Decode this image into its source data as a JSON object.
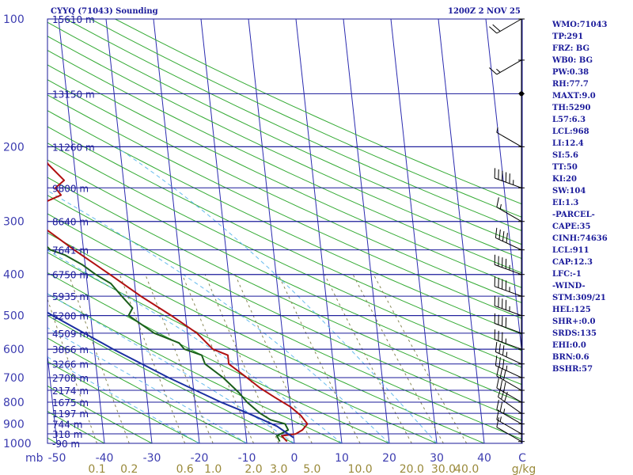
{
  "header": {
    "title": "CYYQ (71043) Sounding",
    "datetime": "1200Z  2 NOV 25"
  },
  "indices": [
    "WMO:71043",
    "TP:291",
    "FRZ: BG",
    "WB0: BG",
    "PW:0.38",
    "RH:77.7",
    "MAXT:9.0",
    "TH:5290",
    "L57:6.3",
    "LCL:968",
    "LI:12.4",
    "SI:5.6",
    "TT:50",
    "KI:20",
    "SW:104",
    "EI:1.3",
    "-PARCEL-",
    "CAPE:35",
    "CINH:74636",
    "LCL:911",
    "CAP:12.3",
    "LFC:-1",
    "-WIND-",
    "STM:309/21",
    "HEL:125",
    "SHR+:0.0",
    "SRDS:135",
    "EHI:0.0",
    "BRN:0.6",
    "BSHR:57"
  ],
  "colors": {
    "isobar": "#1a1a9a",
    "isotherm": "#2b2bb0",
    "dry_adiabat": "#33aa33",
    "moist_adiabat": "#66bbee",
    "mixing_ratio": "#888855",
    "temperature": "#b01010",
    "dewpoint": "#1a5e1a",
    "parcel": "#1a2fa0",
    "wind": "#000000",
    "indices_text": "#1a1a9a"
  },
  "chart_data": {
    "type": "line",
    "chart_kind": "skew-T log-P sounding",
    "pressure_axis": {
      "unit": "mb",
      "scale": "log",
      "range": [
        1000,
        100
      ],
      "tick_labels": [
        "100",
        "200",
        "300",
        "400",
        "500",
        "600",
        "700",
        "800",
        "900",
        "1000"
      ],
      "unit_label": "mb"
    },
    "temperature_axis": {
      "unit": "C",
      "range": [
        -50,
        50
      ],
      "tick_labels": [
        "-50",
        "-40",
        "-30",
        "-20",
        "-10",
        "0",
        "10",
        "20",
        "30",
        "40"
      ],
      "unit_label": "C"
    },
    "heights": [
      {
        "p": 100,
        "label": "15610 m"
      },
      {
        "p": 150,
        "label": "13150 m"
      },
      {
        "p": 200,
        "label": "11260 m"
      },
      {
        "p": 250,
        "label": "9800 m"
      },
      {
        "p": 300,
        "label": "8640 m"
      },
      {
        "p": 350,
        "label": "7641 m"
      },
      {
        "p": 400,
        "label": "6750 m"
      },
      {
        "p": 450,
        "label": "5935 m"
      },
      {
        "p": 500,
        "label": "5200 m"
      },
      {
        "p": 550,
        "label": "4509 m"
      },
      {
        "p": 600,
        "label": "3866 m"
      },
      {
        "p": 650,
        "label": "3266 m"
      },
      {
        "p": 700,
        "label": "2708 m"
      },
      {
        "p": 750,
        "label": "2174 m"
      },
      {
        "p": 800,
        "label": "1675 m"
      },
      {
        "p": 850,
        "label": "1197 m"
      },
      {
        "p": 900,
        "label": "744 m"
      },
      {
        "p": 950,
        "label": "318 m"
      },
      {
        "p": 1000,
        "label": "-90 m"
      }
    ],
    "mixing_ratio_labels": {
      "unit": "g/kg",
      "values": [
        "0.1",
        "0.2",
        "0.6",
        "1.0",
        "2.0",
        "3.0",
        "5.0",
        "10.0",
        "20.0",
        "30.0",
        "40.0"
      ]
    },
    "series": [
      {
        "id": "temperature",
        "points": [
          {
            "p": 990,
            "t": -1.5
          },
          {
            "p": 960,
            "t": -2.5
          },
          {
            "p": 950,
            "t": 0.5
          },
          {
            "p": 930,
            "t": 2.0
          },
          {
            "p": 900,
            "t": 3.2
          },
          {
            "p": 860,
            "t": 2.0
          },
          {
            "p": 820,
            "t": 0.0
          },
          {
            "p": 780,
            "t": -3.0
          },
          {
            "p": 740,
            "t": -6.0
          },
          {
            "p": 700,
            "t": -8.5
          },
          {
            "p": 650,
            "t": -12.0
          },
          {
            "p": 620,
            "t": -12.0
          },
          {
            "p": 600,
            "t": -15.0
          },
          {
            "p": 550,
            "t": -18.0
          },
          {
            "p": 500,
            "t": -23.0
          },
          {
            "p": 450,
            "t": -29.0
          },
          {
            "p": 400,
            "t": -35.0
          },
          {
            "p": 350,
            "t": -42.0
          },
          {
            "p": 300,
            "t": -49.5
          },
          {
            "p": 290,
            "t": -51.0
          },
          {
            "p": 280,
            "t": -50.5
          },
          {
            "p": 270,
            "t": -47.0
          },
          {
            "p": 260,
            "t": -43.5
          },
          {
            "p": 250,
            "t": -44.5
          },
          {
            "p": 240,
            "t": -42.5
          },
          {
            "p": 220,
            "t": -45.5
          },
          {
            "p": 200,
            "t": -47.5
          },
          {
            "p": 180,
            "t": -49.5
          },
          {
            "p": 160,
            "t": -53.5
          },
          {
            "p": 150,
            "t": -55.0
          },
          {
            "p": 140,
            "t": -57.0
          },
          {
            "p": 130,
            "t": -58.5
          },
          {
            "p": 120,
            "t": -61.5
          },
          {
            "p": 110,
            "t": -63.0
          },
          {
            "p": 100,
            "t": -65.0
          }
        ]
      },
      {
        "id": "dewpoint",
        "points": [
          {
            "p": 990,
            "t": -3.0
          },
          {
            "p": 960,
            "t": -3.5
          },
          {
            "p": 930,
            "t": -1.0
          },
          {
            "p": 900,
            "t": -1.5
          },
          {
            "p": 880,
            "t": -4.5
          },
          {
            "p": 850,
            "t": -6.5
          },
          {
            "p": 800,
            "t": -9.0
          },
          {
            "p": 760,
            "t": -10.5
          },
          {
            "p": 700,
            "t": -13.5
          },
          {
            "p": 650,
            "t": -17.0
          },
          {
            "p": 620,
            "t": -17.5
          },
          {
            "p": 600,
            "t": -21.0
          },
          {
            "p": 580,
            "t": -22.0
          },
          {
            "p": 550,
            "t": -27.0
          },
          {
            "p": 500,
            "t": -32.0
          },
          {
            "p": 480,
            "t": -31.0
          },
          {
            "p": 450,
            "t": -33.0
          },
          {
            "p": 420,
            "t": -35.0
          },
          {
            "p": 400,
            "t": -38.0
          },
          {
            "p": 380,
            "t": -40.5
          },
          {
            "p": 360,
            "t": -44.0
          },
          {
            "p": 350,
            "t": -47.0
          },
          {
            "p": 340,
            "t": -48.0
          },
          {
            "p": 320,
            "t": -50.0
          },
          {
            "p": 310,
            "t": -48.0
          },
          {
            "p": 300,
            "t": -53.0
          },
          {
            "p": 290,
            "t": -53.5
          },
          {
            "p": 280,
            "t": -55.0
          },
          {
            "p": 270,
            "t": -58.0
          },
          {
            "p": 260,
            "t": -62.0
          },
          {
            "p": 250,
            "t": -64.0
          },
          {
            "p": 240,
            "t": -63.5
          },
          {
            "p": 220,
            "t": -67.0
          },
          {
            "p": 200,
            "t": -69.0
          },
          {
            "p": 180,
            "t": -72.0
          },
          {
            "p": 160,
            "t": -74.0
          },
          {
            "p": 150,
            "t": -75.5
          },
          {
            "p": 140,
            "t": -77.0
          },
          {
            "p": 130,
            "t": -78.5
          },
          {
            "p": 125,
            "t": -80.0
          },
          {
            "p": 120,
            "t": -79.0
          },
          {
            "p": 115,
            "t": -80.0
          },
          {
            "p": 110,
            "t": -80.5
          },
          {
            "p": 100,
            "t": -81.5
          }
        ]
      },
      {
        "id": "parcel",
        "points": [
          {
            "p": 970,
            "t": 0.0
          },
          {
            "p": 911,
            "t": -3.3
          },
          {
            "p": 850,
            "t": -9.0
          },
          {
            "p": 800,
            "t": -14.5
          },
          {
            "p": 700,
            "t": -25.0
          },
          {
            "p": 600,
            "t": -36.0
          },
          {
            "p": 500,
            "t": -48.0
          },
          {
            "p": 400,
            "t": -62.0
          },
          {
            "p": 300,
            "t": -80.0
          },
          {
            "p": 250,
            "t": -91.0
          },
          {
            "p": 200,
            "t": -104.0
          },
          {
            "p": 150,
            "t": -122.0
          },
          {
            "p": 100,
            "t": -150.0
          }
        ]
      }
    ],
    "wind_barbs": [
      {
        "p": 990,
        "dir": 300,
        "kt": 10
      },
      {
        "p": 950,
        "dir": 300,
        "kt": 15
      },
      {
        "p": 900,
        "dir": 300,
        "kt": 25
      },
      {
        "p": 850,
        "dir": 305,
        "kt": 30
      },
      {
        "p": 800,
        "dir": 300,
        "kt": 30
      },
      {
        "p": 750,
        "dir": 300,
        "kt": 30
      },
      {
        "p": 700,
        "dir": 295,
        "kt": 35
      },
      {
        "p": 650,
        "dir": 295,
        "kt": 35
      },
      {
        "p": 600,
        "dir": 290,
        "kt": 35
      },
      {
        "p": 550,
        "dir": 290,
        "kt": 40
      },
      {
        "p": 500,
        "dir": 290,
        "kt": 45
      },
      {
        "p": 450,
        "dir": 290,
        "kt": 45
      },
      {
        "p": 400,
        "dir": 290,
        "kt": 45
      },
      {
        "p": 350,
        "dir": 295,
        "kt": 40
      },
      {
        "p": 300,
        "dir": 300,
        "kt": 15
      },
      {
        "p": 250,
        "dir": 290,
        "kt": 55
      },
      {
        "p": 200,
        "dir": 300,
        "kt": 5
      },
      {
        "p": 150,
        "dir": 0,
        "kt": 0
      },
      {
        "p": 125,
        "dir": 240,
        "kt": 15
      },
      {
        "p": 100,
        "dir": 240,
        "kt": 20
      }
    ]
  }
}
